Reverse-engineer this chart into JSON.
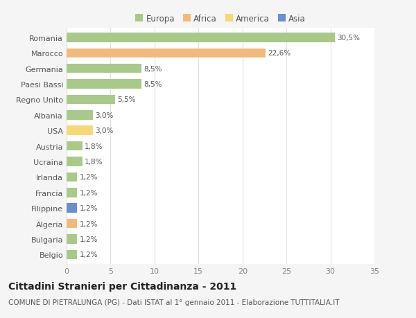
{
  "categories": [
    "Romania",
    "Marocco",
    "Germania",
    "Paesi Bassi",
    "Regno Unito",
    "Albania",
    "USA",
    "Austria",
    "Ucraina",
    "Irlanda",
    "Francia",
    "Filippine",
    "Algeria",
    "Bulgaria",
    "Belgio"
  ],
  "values": [
    30.5,
    22.6,
    8.5,
    8.5,
    5.5,
    3.0,
    3.0,
    1.8,
    1.8,
    1.2,
    1.2,
    1.2,
    1.2,
    1.2,
    1.2
  ],
  "labels": [
    "30,5%",
    "22,6%",
    "8,5%",
    "8,5%",
    "5,5%",
    "3,0%",
    "3,0%",
    "1,8%",
    "1,8%",
    "1,2%",
    "1,2%",
    "1,2%",
    "1,2%",
    "1,2%",
    "1,2%"
  ],
  "colors": [
    "#a8c98a",
    "#f2b97e",
    "#a8c98a",
    "#a8c98a",
    "#a8c98a",
    "#a8c98a",
    "#f5d87a",
    "#a8c98a",
    "#a8c98a",
    "#a8c98a",
    "#a8c98a",
    "#6b8fc7",
    "#f2b97e",
    "#a8c98a",
    "#a8c98a"
  ],
  "legend_labels": [
    "Europa",
    "Africa",
    "America",
    "Asia"
  ],
  "legend_colors": [
    "#a8c98a",
    "#f2b97e",
    "#f5d87a",
    "#6b8fc7"
  ],
  "title": "Cittadini Stranieri per Cittadinanza - 2011",
  "subtitle": "COMUNE DI PIETRALUNGA (PG) - Dati ISTAT al 1° gennaio 2011 - Elaborazione TUTTITALIA.IT",
  "xlim": [
    0,
    35
  ],
  "xticks": [
    0,
    5,
    10,
    15,
    20,
    25,
    30,
    35
  ],
  "background_color": "#f5f5f5",
  "plot_bg_color": "#ffffff",
  "grid_color": "#e0e0e0",
  "bar_height": 0.6,
  "title_fontsize": 10,
  "subtitle_fontsize": 7.5,
  "tick_fontsize": 8,
  "label_fontsize": 7.5
}
